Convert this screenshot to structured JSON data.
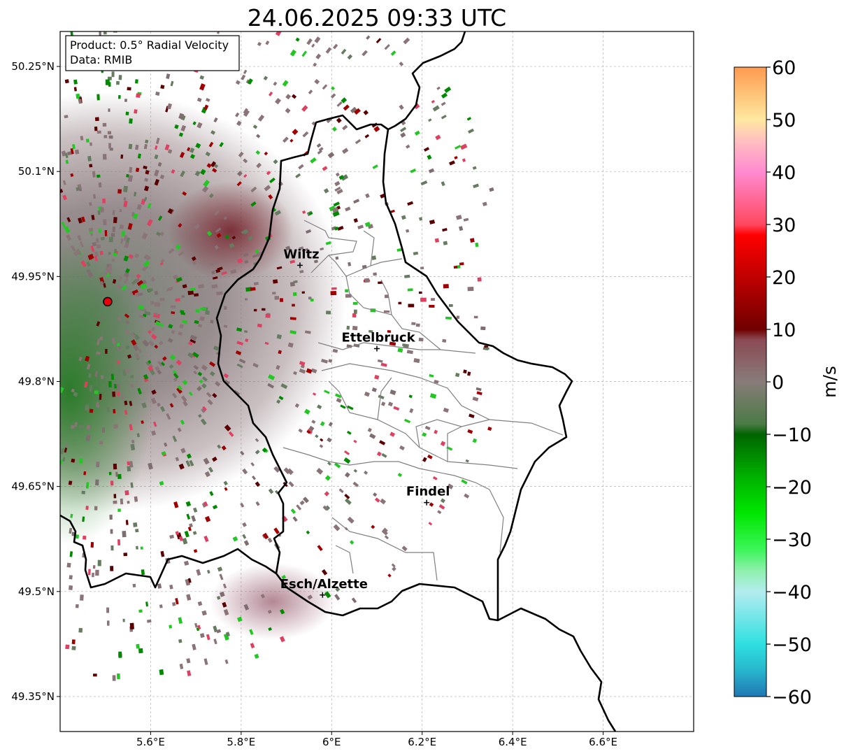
{
  "title": "24.06.2025 09:33 UTC",
  "infobox": {
    "product": "Product: 0.5° Radial Velocity",
    "data_source": "Data: RMIB"
  },
  "map": {
    "lon_range": [
      5.4,
      6.8
    ],
    "lat_range": [
      49.3,
      50.3
    ],
    "lon_ticks": [
      {
        "value": 5.6,
        "label": "5.6°E"
      },
      {
        "value": 5.8,
        "label": "5.8°E"
      },
      {
        "value": 6.0,
        "label": "6°E"
      },
      {
        "value": 6.2,
        "label": "6.2°E"
      },
      {
        "value": 6.4,
        "label": "6.4°E"
      },
      {
        "value": 6.6,
        "label": "6.6°E"
      }
    ],
    "lat_ticks": [
      {
        "value": 50.25,
        "label": "50.25°N"
      },
      {
        "value": 50.1,
        "label": "50.1°N"
      },
      {
        "value": 49.95,
        "label": "49.95°N"
      },
      {
        "value": 49.8,
        "label": "49.8°N"
      },
      {
        "value": 49.65,
        "label": "49.65°N"
      },
      {
        "value": 49.5,
        "label": "49.5°N"
      },
      {
        "value": 49.35,
        "label": "49.35°N"
      }
    ],
    "grid": true,
    "radar_site": {
      "lon": 5.505,
      "lat": 49.914,
      "color": "#e8000b"
    },
    "cities": [
      {
        "name": "Wiltz",
        "lon": 5.93,
        "lat": 49.966
      },
      {
        "name": "Ettelbruck",
        "lon": 6.1,
        "lat": 49.847
      },
      {
        "name": "Findel",
        "lon": 6.21,
        "lat": 49.627
      },
      {
        "name": "Esch/Alzette",
        "lon": 5.98,
        "lat": 49.495
      }
    ]
  },
  "colorbar": {
    "label": "m/s",
    "min": -60,
    "max": 60,
    "ticks": [
      {
        "value": 60,
        "label": "60"
      },
      {
        "value": 50,
        "label": "50"
      },
      {
        "value": 40,
        "label": "40"
      },
      {
        "value": 30,
        "label": "30"
      },
      {
        "value": 20,
        "label": "20"
      },
      {
        "value": 10,
        "label": "10"
      },
      {
        "value": 0,
        "label": "0"
      },
      {
        "value": -10,
        "label": "−10"
      },
      {
        "value": -20,
        "label": "−20"
      },
      {
        "value": -30,
        "label": "−30"
      },
      {
        "value": -40,
        "label": "−40"
      },
      {
        "value": -50,
        "label": "−50"
      },
      {
        "value": -60,
        "label": "−60"
      }
    ],
    "stops": [
      {
        "value": -60,
        "color": "#1f77b4"
      },
      {
        "value": -55,
        "color": "#27b6cc"
      },
      {
        "value": -50,
        "color": "#2fe0e0"
      },
      {
        "value": -40,
        "color": "#b4ecef"
      },
      {
        "value": -36,
        "color": "#8ff0ad"
      },
      {
        "value": -32,
        "color": "#3cf55a"
      },
      {
        "value": -25,
        "color": "#00e600"
      },
      {
        "value": -18,
        "color": "#00b000"
      },
      {
        "value": -10,
        "color": "#006400"
      },
      {
        "value": -8,
        "color": "#4c7a46"
      },
      {
        "value": 0,
        "color": "#887c7a"
      },
      {
        "value": 8,
        "color": "#8b4a55"
      },
      {
        "value": 10,
        "color": "#700000"
      },
      {
        "value": 20,
        "color": "#c00000"
      },
      {
        "value": 28,
        "color": "#ff0000"
      },
      {
        "value": 30,
        "color": "#ff4860"
      },
      {
        "value": 40,
        "color": "#ff8ad0"
      },
      {
        "value": 46,
        "color": "#ffc0c0"
      },
      {
        "value": 50,
        "color": "#ffe8a0"
      },
      {
        "value": 60,
        "color": "#ff9a50"
      }
    ]
  }
}
